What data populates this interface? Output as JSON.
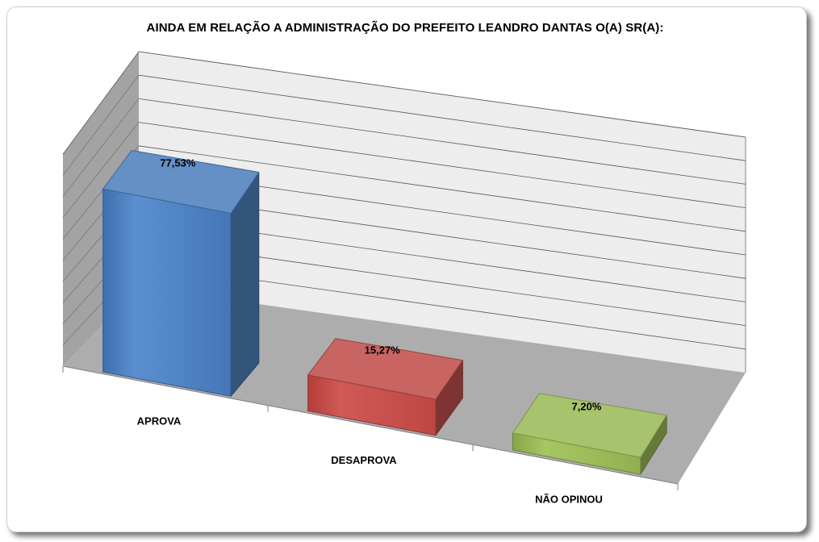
{
  "chart_data": {
    "type": "bar",
    "title": "AINDA EM RELAÇÃO A ADMINISTRAÇÃO DO PREFEITO LEANDRO DANTAS O(A) SR(A):",
    "categories": [
      "APROVA",
      "DESAPROVA",
      "NÃO OPINOU"
    ],
    "values": [
      77.53,
      15.27,
      7.2
    ],
    "data_labels": [
      "77,53%",
      "15,27%",
      "7,20%"
    ],
    "unit": "%",
    "ylim": [
      0,
      90
    ],
    "grid": true,
    "legend": "none",
    "style": "3d-column",
    "colors": [
      "#4f81bd",
      "#c0504d",
      "#9bbb59"
    ]
  }
}
